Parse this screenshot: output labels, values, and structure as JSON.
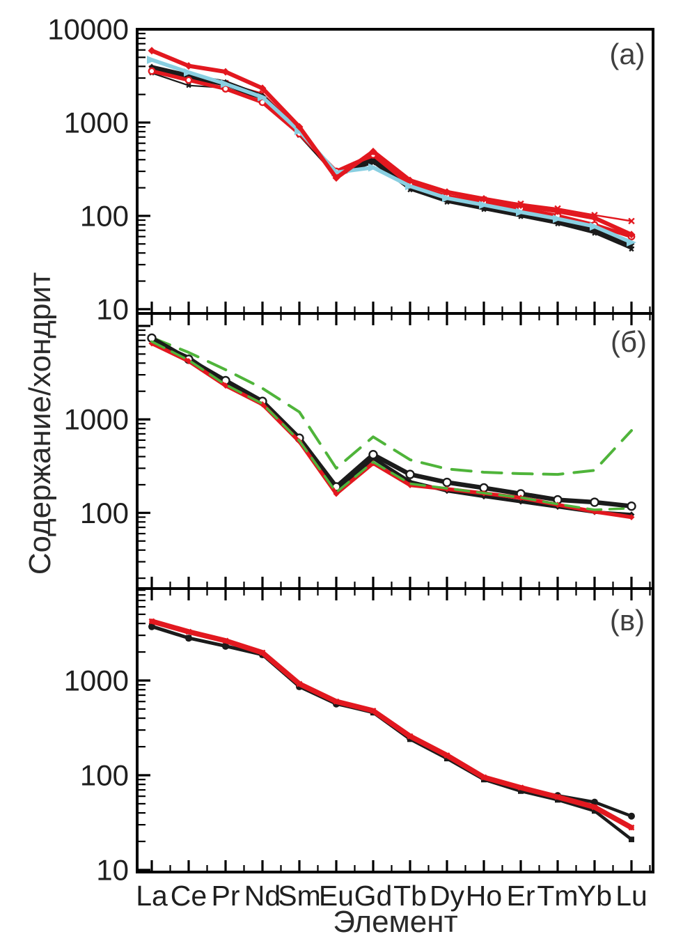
{
  "figure": {
    "xlabel": "Элемент",
    "ylabel": "Содержание/хондрит",
    "categories": [
      "La",
      "Ce",
      "Pr",
      "Nd",
      "Sm",
      "Eu",
      "Gd",
      "Tb",
      "Dy",
      "Ho",
      "Er",
      "Tm",
      "Yb",
      "Lu"
    ],
    "colors": {
      "red": "#e2181f",
      "black": "#1b1b1b",
      "cyan": "#89cfe1",
      "green": "#4fb43a",
      "frame": "#000000",
      "text": "#1f1f1f",
      "panel_label": "#3f3f3f"
    }
  },
  "chart_data": [
    {
      "panel_label": "(а)",
      "type": "line",
      "log_y": true,
      "ylim": [
        9,
        10000
      ],
      "y_tick_labels": [
        10000,
        1000,
        100,
        10
      ],
      "series": [
        {
          "name": "black-thin",
          "color_key": "black",
          "width": 2.2,
          "dash": null,
          "marker": "x",
          "marker_r": 4,
          "values": [
            3400,
            2500,
            2350,
            1800,
            730,
            265,
            370,
            190,
            140,
            117,
            98,
            82,
            65,
            44
          ]
        },
        {
          "name": "red-thin-x",
          "color_key": "red",
          "width": 2.4,
          "dash": null,
          "marker": "x",
          "marker_r": 5.5,
          "values": [
            3800,
            3000,
            2650,
            2050,
            840,
            285,
            430,
            228,
            175,
            150,
            135,
            120,
            102,
            88
          ]
        },
        {
          "name": "black-2",
          "color_key": "black",
          "width": 5,
          "dash": null,
          "marker": "plus",
          "marker_r": 4,
          "values": [
            3750,
            3050,
            2550,
            1850,
            750,
            275,
            385,
            198,
            146,
            122,
            102,
            86,
            68,
            46
          ]
        },
        {
          "name": "black-1",
          "color_key": "black",
          "width": 5.5,
          "dash": null,
          "marker": "diamond",
          "marker_r": 4.5,
          "values": [
            3950,
            3200,
            2700,
            1920,
            780,
            285,
            400,
            205,
            152,
            128,
            108,
            90,
            72,
            50
          ]
        },
        {
          "name": "red-2",
          "color_key": "red",
          "width": 5.5,
          "dash": null,
          "marker": "circle-open",
          "marker_r": 4.2,
          "values": [
            3560,
            2850,
            2300,
            1650,
            760,
            300,
            450,
            215,
            162,
            140,
            120,
            100,
            80,
            60
          ]
        },
        {
          "name": "cyan",
          "color_key": "cyan",
          "width": 5.5,
          "dash": null,
          "marker": "tri-right",
          "marker_r": 7,
          "values": [
            4700,
            3450,
            2600,
            1870,
            810,
            292,
            330,
            208,
            155,
            131,
            110,
            93,
            77,
            52
          ]
        },
        {
          "name": "red-1",
          "color_key": "red",
          "width": 6,
          "dash": null,
          "marker": "diamond",
          "marker_r": 5.5,
          "values": [
            5900,
            4050,
            3500,
            2330,
            900,
            255,
            490,
            240,
            180,
            152,
            130,
            112,
            95,
            63
          ]
        }
      ]
    },
    {
      "panel_label": "(б)",
      "type": "line",
      "log_y": true,
      "ylim": [
        15.5,
        13600
      ],
      "y_tick_labels": [
        1000,
        100
      ],
      "series": [
        {
          "name": "green-dashed-upper",
          "color_key": "green",
          "width": 4,
          "dash": "28 16",
          "marker": "none",
          "marker_r": 0,
          "values": [
            7500,
            5200,
            3400,
            2150,
            1200,
            300,
            650,
            370,
            295,
            272,
            263,
            258,
            285,
            760
          ]
        },
        {
          "name": "black-2",
          "color_key": "black",
          "width": 5,
          "dash": null,
          "marker": "diamond",
          "marker_r": 4.5,
          "values": [
            7000,
            4600,
            2480,
            1500,
            600,
            172,
            385,
            215,
            172,
            150,
            132,
            116,
            102,
            96
          ]
        },
        {
          "name": "black-1",
          "color_key": "black",
          "width": 6.5,
          "dash": null,
          "marker": "circle-open",
          "marker_r": 5.5,
          "values": [
            7400,
            4400,
            2600,
            1560,
            630,
            190,
            420,
            258,
            212,
            185,
            160,
            138,
            130,
            118
          ]
        },
        {
          "name": "red",
          "color_key": "red",
          "width": 5.5,
          "dash": null,
          "marker": "diamond",
          "marker_r": 4.5,
          "values": [
            6500,
            4200,
            2300,
            1450,
            580,
            160,
            340,
            198,
            180,
            162,
            145,
            122,
            103,
            90
          ]
        },
        {
          "name": "green-dashed-lower",
          "color_key": "green",
          "width": 3.5,
          "dash": "20 12",
          "marker": "none",
          "marker_r": 0,
          "values": [
            6800,
            4300,
            2350,
            1470,
            590,
            166,
            350,
            205,
            183,
            163,
            146,
            124,
            108,
            112
          ]
        }
      ]
    },
    {
      "panel_label": "(в)",
      "type": "line",
      "log_y": true,
      "ylim": [
        9.5,
        9350
      ],
      "y_tick_labels": [
        1000,
        100,
        10
      ],
      "series": [
        {
          "name": "black-circles",
          "color_key": "black",
          "width": 4.5,
          "dash": null,
          "marker": "circle-fill",
          "marker_r": 5,
          "values": [
            3700,
            2800,
            2300,
            1870,
            860,
            565,
            465,
            245,
            155,
            93,
            72,
            61,
            52,
            37
          ]
        },
        {
          "name": "black-squares",
          "color_key": "black",
          "width": 4.5,
          "dash": null,
          "marker": "square",
          "marker_r": 4,
          "values": [
            3750,
            2820,
            2320,
            1880,
            865,
            570,
            458,
            240,
            150,
            90,
            68,
            55,
            42,
            21
          ]
        },
        {
          "name": "red",
          "color_key": "red",
          "width": 7.5,
          "dash": null,
          "marker": "x",
          "marker_r": 5,
          "values": [
            4220,
            3270,
            2630,
            1970,
            920,
            600,
            480,
            258,
            162,
            95,
            74,
            59,
            46,
            28
          ]
        }
      ]
    }
  ]
}
